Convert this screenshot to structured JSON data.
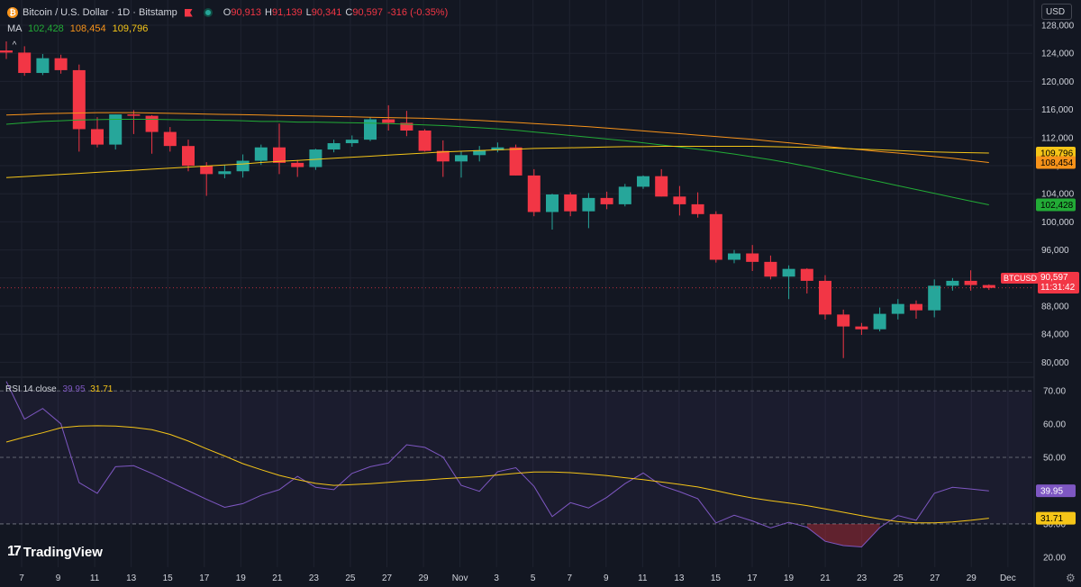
{
  "header": {
    "symbol": "Bitcoin / U.S. Dollar · 1D · Bitstamp",
    "coin_icon": "bitcoin-icon",
    "open_label": "O",
    "open": "90,913",
    "high_label": "H",
    "high": "91,139",
    "low_label": "L",
    "low": "90,341",
    "close_label": "C",
    "close": "90,597",
    "change": "-316 (-0.35%)"
  },
  "ma_legend": {
    "label": "MA",
    "v1": "102,428",
    "v2": "108,454",
    "v3": "109,796"
  },
  "rsi_legend": {
    "label": "RSI 14 close",
    "v1": "39.95",
    "v2": "31.71"
  },
  "currency": "USD",
  "brand": {
    "mark": "17",
    "name": "TradingView"
  },
  "price_tag": {
    "symbol": "BTCUSD",
    "price": "90,597",
    "countdown": "11:31:42"
  },
  "colors": {
    "up": "#26a69a",
    "down": "#f23645",
    "ma_green": "#22ab36",
    "ma_orange": "#f7931a",
    "ma_yellow": "#f5c518",
    "rsi": "#7e57c2",
    "rsi_ma": "#f5c518",
    "bg": "#131722"
  },
  "chart_data": [
    {
      "type": "candlestick",
      "title": "",
      "ylim": [
        78000,
        128000
      ],
      "y_ticks": [
        80000,
        84000,
        88000,
        92000,
        96000,
        100000,
        104000,
        108000,
        112000,
        116000,
        120000,
        124000,
        128000
      ],
      "y_tick_labels": [
        "80,000",
        "84,000",
        "88,000",
        "92,000",
        "96,000",
        "100,000",
        "104,000",
        "108,000",
        "112,000",
        "116,000",
        "120,000",
        "124,000",
        "128,000"
      ],
      "x_ticks": [
        "7",
        "9",
        "11",
        "13",
        "15",
        "17",
        "19",
        "21",
        "23",
        "25",
        "27",
        "29",
        "Nov",
        "3",
        "5",
        "7",
        "9",
        "11",
        "13",
        "15",
        "17",
        "19",
        "21",
        "23",
        "25",
        "27",
        "29",
        "Dec"
      ],
      "candles": [
        [
          124400,
          125700,
          123200,
          124100
        ],
        [
          124100,
          125000,
          120800,
          121200
        ],
        [
          121200,
          123900,
          120900,
          123300
        ],
        [
          123300,
          123800,
          121100,
          121600
        ],
        [
          121600,
          122400,
          110000,
          113200
        ],
        [
          113200,
          114900,
          110600,
          111000
        ],
        [
          111000,
          115300,
          110300,
          115300
        ],
        [
          115300,
          115900,
          112500,
          115100
        ],
        [
          115100,
          115200,
          109700,
          112800
        ],
        [
          112800,
          113500,
          110000,
          110800
        ],
        [
          110800,
          111700,
          107200,
          108000
        ],
        [
          108000,
          108500,
          103700,
          106800
        ],
        [
          106800,
          108100,
          106200,
          107200
        ],
        [
          107200,
          109600,
          106300,
          108700
        ],
        [
          108700,
          111000,
          108100,
          110600
        ],
        [
          110600,
          114000,
          106800,
          108400
        ],
        [
          108400,
          108800,
          106400,
          107800
        ],
        [
          107800,
          110400,
          107400,
          110300
        ],
        [
          110300,
          111700,
          109900,
          111200
        ],
        [
          111200,
          112300,
          110700,
          111700
        ],
        [
          111700,
          114900,
          111500,
          114600
        ],
        [
          114600,
          116600,
          113000,
          114100
        ],
        [
          114100,
          115800,
          112200,
          113000
        ],
        [
          113000,
          113200,
          110000,
          110100
        ],
        [
          110100,
          111600,
          106400,
          108600
        ],
        [
          108600,
          110000,
          106300,
          109500
        ],
        [
          109500,
          110800,
          108600,
          110200
        ],
        [
          110200,
          111300,
          109900,
          110600
        ],
        [
          110600,
          111000,
          106600,
          106600
        ],
        [
          106600,
          107500,
          100800,
          101400
        ],
        [
          101400,
          104000,
          98900,
          103900
        ],
        [
          103900,
          104200,
          100800,
          101500
        ],
        [
          101500,
          104100,
          99100,
          103400
        ],
        [
          103400,
          104300,
          101800,
          102500
        ],
        [
          102500,
          105400,
          102200,
          105000
        ],
        [
          105000,
          106600,
          104700,
          106500
        ],
        [
          106500,
          107500,
          103600,
          103600
        ],
        [
          103600,
          105100,
          100900,
          102500
        ],
        [
          102500,
          104200,
          100600,
          101100
        ],
        [
          101100,
          101500,
          94200,
          94600
        ],
        [
          94600,
          96000,
          94100,
          95500
        ],
        [
          95500,
          96700,
          93000,
          94300
        ],
        [
          94300,
          95200,
          91800,
          92200
        ],
        [
          92200,
          93800,
          89000,
          93300
        ],
        [
          93300,
          93400,
          89800,
          91600
        ],
        [
          91600,
          92400,
          86100,
          86800
        ],
        [
          86800,
          87500,
          80600,
          85100
        ],
        [
          85100,
          85600,
          83900,
          84700
        ],
        [
          84700,
          87800,
          84400,
          86900
        ],
        [
          86900,
          89000,
          86100,
          88300
        ],
        [
          88300,
          88800,
          86200,
          87400
        ],
        [
          87400,
          91800,
          86400,
          90900
        ],
        [
          90900,
          92000,
          90200,
          91600
        ],
        [
          91600,
          93100,
          90200,
          91000
        ],
        [
          91000,
          91100,
          90300,
          90600
        ]
      ],
      "series": [
        {
          "name": "MA",
          "value_label": "102,428",
          "values": [
            113900,
            114100,
            114300,
            114400,
            114500,
            114550,
            114600,
            114600,
            114600,
            114550,
            114500,
            114500,
            114450,
            114400,
            114300,
            114300,
            114200,
            114200,
            114150,
            114100,
            114050,
            114000,
            113900,
            113800,
            113700,
            113550,
            113400,
            113250,
            113050,
            112800,
            112550,
            112300,
            112050,
            111800,
            111550,
            111250,
            110950,
            110650,
            110350,
            110000,
            109650,
            109250,
            108850,
            108400,
            107900,
            107350,
            106800,
            106250,
            105700,
            105150,
            104600,
            104050,
            103500,
            102950,
            102428
          ]
        },
        {
          "name": "MA",
          "value_label": "108,454",
          "values": [
            115200,
            115300,
            115400,
            115450,
            115500,
            115550,
            115550,
            115550,
            115500,
            115450,
            115400,
            115350,
            115300,
            115250,
            115200,
            115150,
            115100,
            115050,
            115000,
            114950,
            114900,
            114850,
            114800,
            114750,
            114650,
            114550,
            114450,
            114300,
            114150,
            114000,
            113850,
            113700,
            113550,
            113350,
            113150,
            112950,
            112750,
            112550,
            112350,
            112150,
            111950,
            111750,
            111500,
            111250,
            111000,
            110750,
            110500,
            110250,
            110000,
            109800,
            109550,
            109300,
            109050,
            108750,
            108454
          ]
        },
        {
          "name": "MA",
          "value_label": "109,796",
          "values": [
            106300,
            106450,
            106600,
            106750,
            106900,
            107050,
            107200,
            107350,
            107500,
            107650,
            107800,
            107950,
            108100,
            108250,
            108450,
            108600,
            108750,
            108900,
            109050,
            109200,
            109350,
            109500,
            109650,
            109800,
            109950,
            110050,
            110150,
            110250,
            110350,
            110450,
            110500,
            110550,
            110600,
            110650,
            110700,
            110700,
            110750,
            110750,
            110750,
            110750,
            110750,
            110750,
            110700,
            110650,
            110600,
            110550,
            110450,
            110350,
            110250,
            110150,
            110050,
            109950,
            109900,
            109850,
            109796
          ]
        }
      ]
    },
    {
      "type": "line",
      "title": "",
      "ylim": [
        17,
        73
      ],
      "y_ticks": [
        20,
        30,
        40,
        50,
        60,
        70
      ],
      "y_tick_labels": [
        "20.00",
        "30.00",
        "40.00",
        "50.00",
        "60.00",
        "70.00"
      ],
      "bands": [
        30,
        50,
        70
      ],
      "series": [
        {
          "name": "RSI 14 close",
          "value_label": "39.95",
          "values": [
            72.8,
            61.5,
            64.7,
            60.1,
            42.4,
            39.2,
            47.2,
            47.5,
            45.2,
            42.6,
            40.0,
            37.4,
            35.0,
            36.1,
            38.6,
            40.3,
            44.3,
            41.0,
            40.3,
            45.2,
            47.2,
            48.3,
            53.8,
            53.0,
            50.1,
            41.6,
            39.8,
            45.7,
            46.9,
            41.3,
            32.2,
            36.4,
            34.8,
            38.0,
            42.1,
            45.3,
            41.5,
            39.7,
            37.6,
            30.3,
            32.6,
            30.9,
            28.8,
            30.5,
            29.0,
            24.8,
            23.5,
            23.1,
            28.9,
            32.5,
            31.1,
            39.2,
            41.0,
            40.5,
            39.95
          ]
        },
        {
          "name": "RSI-based MA",
          "value_label": "31.71",
          "values": [
            54.6,
            56.1,
            57.4,
            58.9,
            59.4,
            59.5,
            59.4,
            59.0,
            58.3,
            56.9,
            54.9,
            52.6,
            50.4,
            48.1,
            46.3,
            44.6,
            43.3,
            42.2,
            41.6,
            41.8,
            42.1,
            42.5,
            42.9,
            43.2,
            43.6,
            43.9,
            44.2,
            44.7,
            45.2,
            45.6,
            45.6,
            45.4,
            45.0,
            44.5,
            43.9,
            43.3,
            42.6,
            41.9,
            41.1,
            40.0,
            38.8,
            37.8,
            37.0,
            36.3,
            35.5,
            34.5,
            33.5,
            32.5,
            31.5,
            30.7,
            30.3,
            30.3,
            30.6,
            31.1,
            31.71
          ]
        }
      ]
    }
  ]
}
